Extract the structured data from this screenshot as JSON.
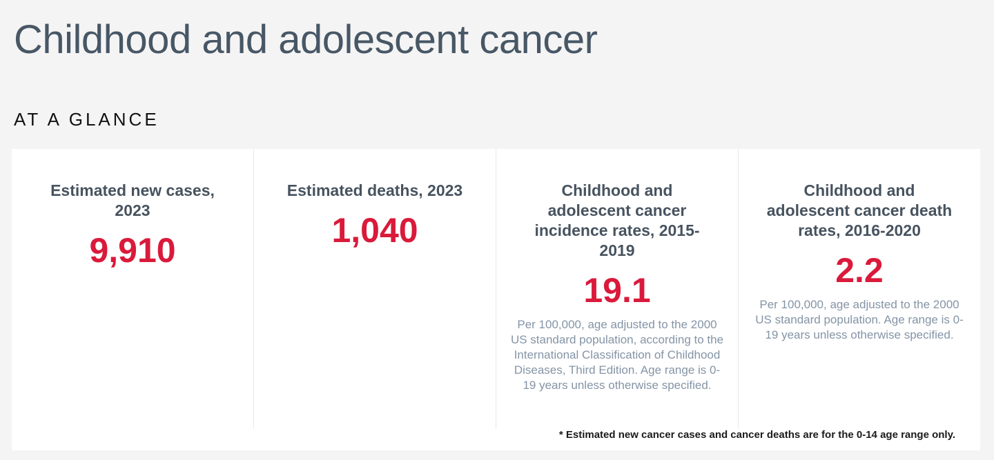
{
  "page": {
    "title": "Childhood and adolescent cancer",
    "section_label": "AT A GLANCE",
    "footnote": "* Estimated new cancer cases and cancer deaths are for the 0-14 age range only."
  },
  "colors": {
    "page_background": "#f5f4f4",
    "panel_background": "#ffffff",
    "title_slate": "#475766",
    "card_label_slate": "#47535f",
    "stat_red": "#da1a3b",
    "description_gray_blue": "#8494a6",
    "divider": "#e8e7e7",
    "footnote_black": "#1b1b1b"
  },
  "stats": [
    {
      "label": "Estimated new cases, 2023",
      "value": "9,910",
      "description": ""
    },
    {
      "label": "Estimated deaths, 2023",
      "value": "1,040",
      "description": ""
    },
    {
      "label": "Childhood and adolescent cancer incidence rates, 2015-2019",
      "value": "19.1",
      "description": "Per 100,000, age adjusted to the 2000 US standard population, according to the International Classification of Childhood Diseases, Third Edition. Age range is 0-19 years unless otherwise specified."
    },
    {
      "label": "Childhood and adolescent cancer death rates, 2016-2020",
      "value": "2.2",
      "description": "Per 100,000, age adjusted to the 2000 US standard population. Age range is 0-19 years unless otherwise specified."
    }
  ]
}
